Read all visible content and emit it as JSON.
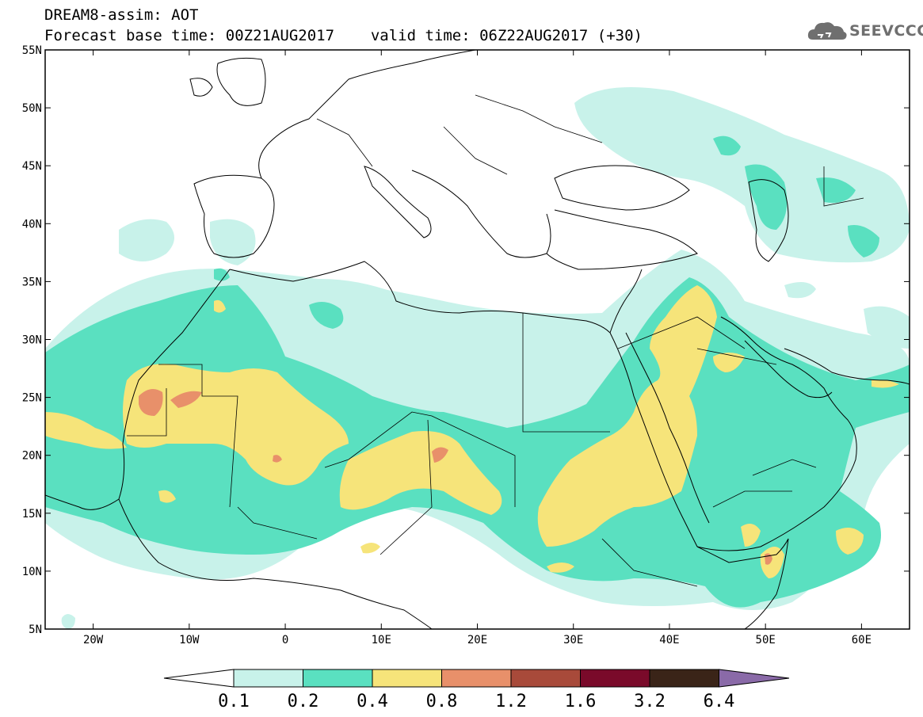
{
  "header": {
    "model_label": "DREAM8-assim: AOT",
    "base_time_label": "Forecast base time: 00Z21AUG2017",
    "valid_time_label": "valid time: 06Z22AUG2017 (+30)"
  },
  "logo": {
    "text": "SEEVCCC",
    "icon": "cloud-logo-icon"
  },
  "map": {
    "lon_range": [
      -25,
      65
    ],
    "lat_range": [
      5,
      55
    ],
    "lat_ticks": [
      "5N",
      "10N",
      "15N",
      "20N",
      "25N",
      "30N",
      "35N",
      "40N",
      "45N",
      "50N",
      "55N"
    ],
    "lon_ticks": [
      "20W",
      "10W",
      "0",
      "10E",
      "20E",
      "30E",
      "40E",
      "50E",
      "60E"
    ]
  },
  "colorbar": {
    "levels": [
      "0.1",
      "0.2",
      "0.4",
      "0.8",
      "1.2",
      "1.6",
      "3.2",
      "6.4"
    ],
    "colors": {
      "under": "#ffffff",
      "c1": "#c8f2ea",
      "c2": "#5ae0c0",
      "c3": "#f6e47a",
      "c4": "#e8906a",
      "c5": "#a84a3a",
      "c6": "#7a0a2a",
      "c7": "#3a2418",
      "over": "#8a6aa8"
    }
  },
  "styles": {
    "land_stroke": "#000000"
  }
}
